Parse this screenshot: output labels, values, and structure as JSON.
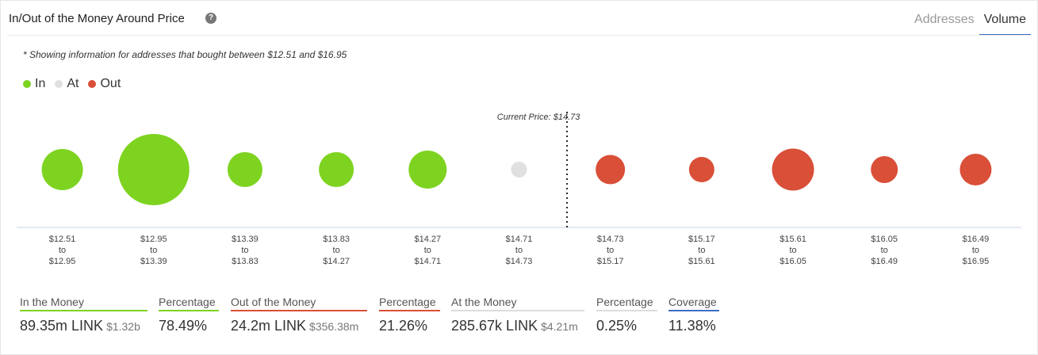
{
  "header": {
    "title": "In/Out of the Money Around Price",
    "help_glyph": "?",
    "tabs": [
      {
        "label": "Addresses",
        "active": false
      },
      {
        "label": "Volume",
        "active": true
      }
    ]
  },
  "note": "* Showing information for addresses that bought between $12.51 and $16.95",
  "legend": [
    {
      "label": "In",
      "color": "#7ed321"
    },
    {
      "label": "At",
      "color": "#e0e0e0"
    },
    {
      "label": "Out",
      "color": "#d94f38"
    }
  ],
  "chart_data": {
    "type": "scatter",
    "current_price_label": "Current Price: $14.73",
    "current_price": 14.73,
    "bins": [
      {
        "from": "$12.51",
        "to": "$12.95",
        "status": "in",
        "size": 52
      },
      {
        "from": "$12.95",
        "to": "$13.39",
        "status": "in",
        "size": 90
      },
      {
        "from": "$13.39",
        "to": "$13.83",
        "status": "in",
        "size": 44
      },
      {
        "from": "$13.83",
        "to": "$14.27",
        "status": "in",
        "size": 44
      },
      {
        "from": "$14.27",
        "to": "$14.71",
        "status": "in",
        "size": 48
      },
      {
        "from": "$14.71",
        "to": "$14.73",
        "status": "at",
        "size": 20
      },
      {
        "from": "$14.73",
        "to": "$15.17",
        "status": "out",
        "size": 37
      },
      {
        "from": "$15.17",
        "to": "$15.61",
        "status": "out",
        "size": 32
      },
      {
        "from": "$15.61",
        "to": "$16.05",
        "status": "out",
        "size": 53
      },
      {
        "from": "$16.05",
        "to": "$16.49",
        "status": "out",
        "size": 34
      },
      {
        "from": "$16.49",
        "to": "$16.95",
        "status": "out",
        "size": 40
      }
    ],
    "to_word": "to",
    "colors": {
      "in": "#7ed321",
      "at": "#e0e0e0",
      "out": "#d94f38"
    }
  },
  "stats": [
    {
      "label": "In the Money",
      "value": "89.35m LINK",
      "sub": "$1.32b",
      "color": "#7ed321"
    },
    {
      "label": "Percentage",
      "value": "78.49%",
      "sub": "",
      "color": "#7ed321"
    },
    {
      "label": "Out of the Money",
      "value": "24.2m LINK",
      "sub": "$356.38m",
      "color": "#d94f38"
    },
    {
      "label": "Percentage",
      "value": "21.26%",
      "sub": "",
      "color": "#d94f38"
    },
    {
      "label": "At the Money",
      "value": "285.67k LINK",
      "sub": "$4.21m",
      "color": "#dddddd"
    },
    {
      "label": "Percentage",
      "value": "0.25%",
      "sub": "",
      "color": "#dddddd"
    },
    {
      "label": "Coverage",
      "value": "11.38%",
      "sub": "",
      "color": "#3b6fc6"
    }
  ]
}
